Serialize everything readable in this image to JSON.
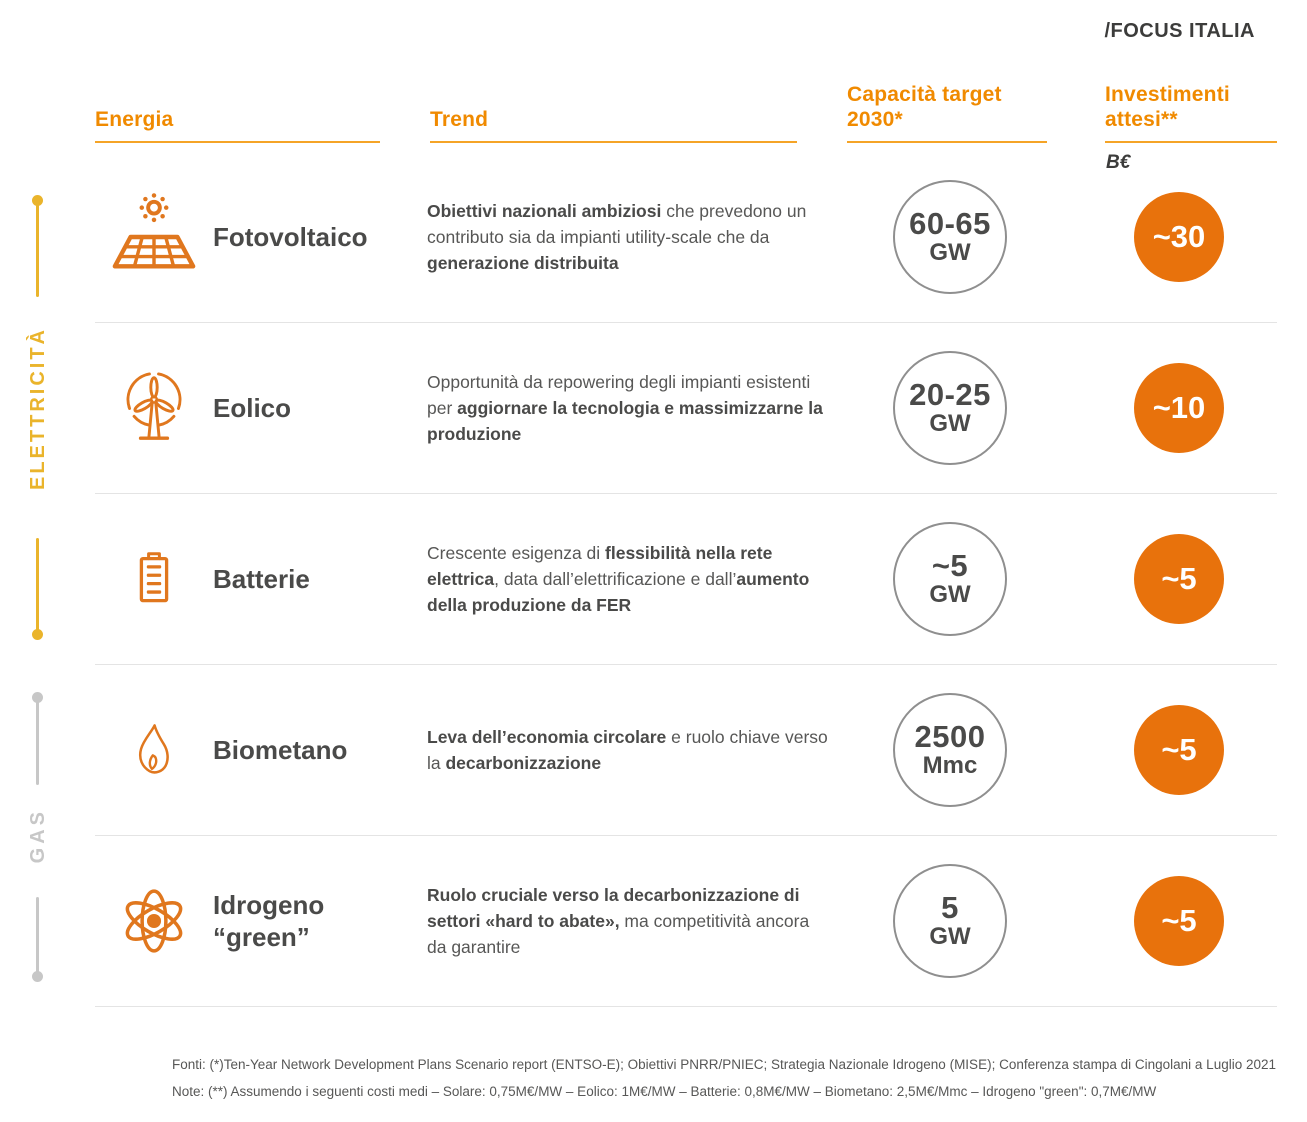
{
  "colors": {
    "orange": "#f08a00",
    "orange-deep": "#e8720c",
    "icon-orange": "#e0771e",
    "yellow": "#eab42b",
    "gray-rail": "#c7c7c7",
    "dark": "#4a4a49",
    "body": "#575756",
    "circle-border": "#8f8f8f",
    "separator": "#e4e4e4"
  },
  "header": {
    "focus_label": "/FOCUS ITALIA",
    "unit_note": "B€",
    "columns": {
      "energia": "Energia",
      "trend": "Trend",
      "capacity": "Capacità target 2030*",
      "investment": "Investimenti attesi**"
    }
  },
  "side_labels": {
    "electricity": "ELETTRICITÀ",
    "gas": "GAS"
  },
  "rows": [
    {
      "name": "Fotovoltaico",
      "icon": "solar-panel-icon",
      "trend": [
        {
          "t": "Obiettivi nazionali ambiziosi",
          "b": true
        },
        {
          "t": " che prevedono un contributo sia da impianti utility-scale che da ",
          "b": false
        },
        {
          "t": "generazione distribuita",
          "b": true
        }
      ],
      "capacity_value": "60-65",
      "capacity_unit": "GW",
      "investment": "~30"
    },
    {
      "name": "Eolico",
      "icon": "wind-turbine-icon",
      "trend": [
        {
          "t": "Opportunità da repowering degli impianti esistenti per ",
          "b": false
        },
        {
          "t": "aggiornare la tecnologia e massimizzarne la produzione",
          "b": true
        }
      ],
      "capacity_value": "20-25",
      "capacity_unit": "GW",
      "investment": "~10"
    },
    {
      "name": "Batterie",
      "icon": "battery-icon",
      "trend": [
        {
          "t": "Crescente esigenza di ",
          "b": false
        },
        {
          "t": "flessibilità nella rete elettrica",
          "b": true
        },
        {
          "t": ", data dall’elettrificazione e dall’",
          "b": false
        },
        {
          "t": "aumento della produzione da FER",
          "b": true
        }
      ],
      "capacity_value": "~5",
      "capacity_unit": "GW",
      "investment": "~5"
    },
    {
      "name": "Biometano",
      "icon": "flame-icon",
      "trend": [
        {
          "t": "Leva dell’economia circolare",
          "b": true
        },
        {
          "t": " e ruolo chiave verso la ",
          "b": false
        },
        {
          "t": "decarbonizzazione",
          "b": true
        }
      ],
      "capacity_value": "2500",
      "capacity_unit": "Mmc",
      "investment": "~5"
    },
    {
      "name": "Idrogeno “green”",
      "icon": "atom-icon",
      "trend": [
        {
          "t": "Ruolo cruciale verso la decarbonizzazione di settori «hard to abate»,",
          "b": true
        },
        {
          "t": " ma competitività ancora da garantire",
          "b": false
        }
      ],
      "capacity_value": "5",
      "capacity_unit": "GW",
      "investment": "~5"
    }
  ],
  "footer": {
    "fonti": "Fonti: (*)Ten-Year Network Development Plans Scenario report (ENTSO-E); Obiettivi PNRR/PNIEC; Strategia Nazionale Idrogeno (MISE);  Conferenza stampa di Cingolani a Luglio 2021",
    "note": "Note: (**) Assumendo i seguenti costi medi – Solare: 0,75M€/MW – Eolico: 1M€/MW – Batterie: 0,8M€/MW – Biometano: 2,5M€/Mmc – Idrogeno \"green\": 0,7M€/MW"
  },
  "chart_data": {
    "type": "table",
    "title": "/FOCUS ITALIA — Capacità target 2030 e investimenti attesi per fonte energetica",
    "columns": [
      "Energia",
      "Trend",
      "Capacità target 2030*",
      "Investimenti attesi** (B€)"
    ],
    "groups": [
      {
        "label": "ELETTRICITÀ",
        "rows": [
          "Fotovoltaico",
          "Eolico",
          "Batterie"
        ]
      },
      {
        "label": "GAS",
        "rows": [
          "Biometano",
          "Idrogeno \"green\""
        ]
      }
    ],
    "rows": [
      {
        "energia": "Fotovoltaico",
        "capacita_target_2030": "60-65 GW",
        "investimenti_attesi_beur": 30
      },
      {
        "energia": "Eolico",
        "capacita_target_2030": "20-25 GW",
        "investimenti_attesi_beur": 10
      },
      {
        "energia": "Batterie",
        "capacita_target_2030": "~5 GW",
        "investimenti_attesi_beur": 5
      },
      {
        "energia": "Biometano",
        "capacita_target_2030": "2500 Mmc",
        "investimenti_attesi_beur": 5
      },
      {
        "energia": "Idrogeno \"green\"",
        "capacita_target_2030": "5 GW",
        "investimenti_attesi_beur": 5
      }
    ]
  }
}
